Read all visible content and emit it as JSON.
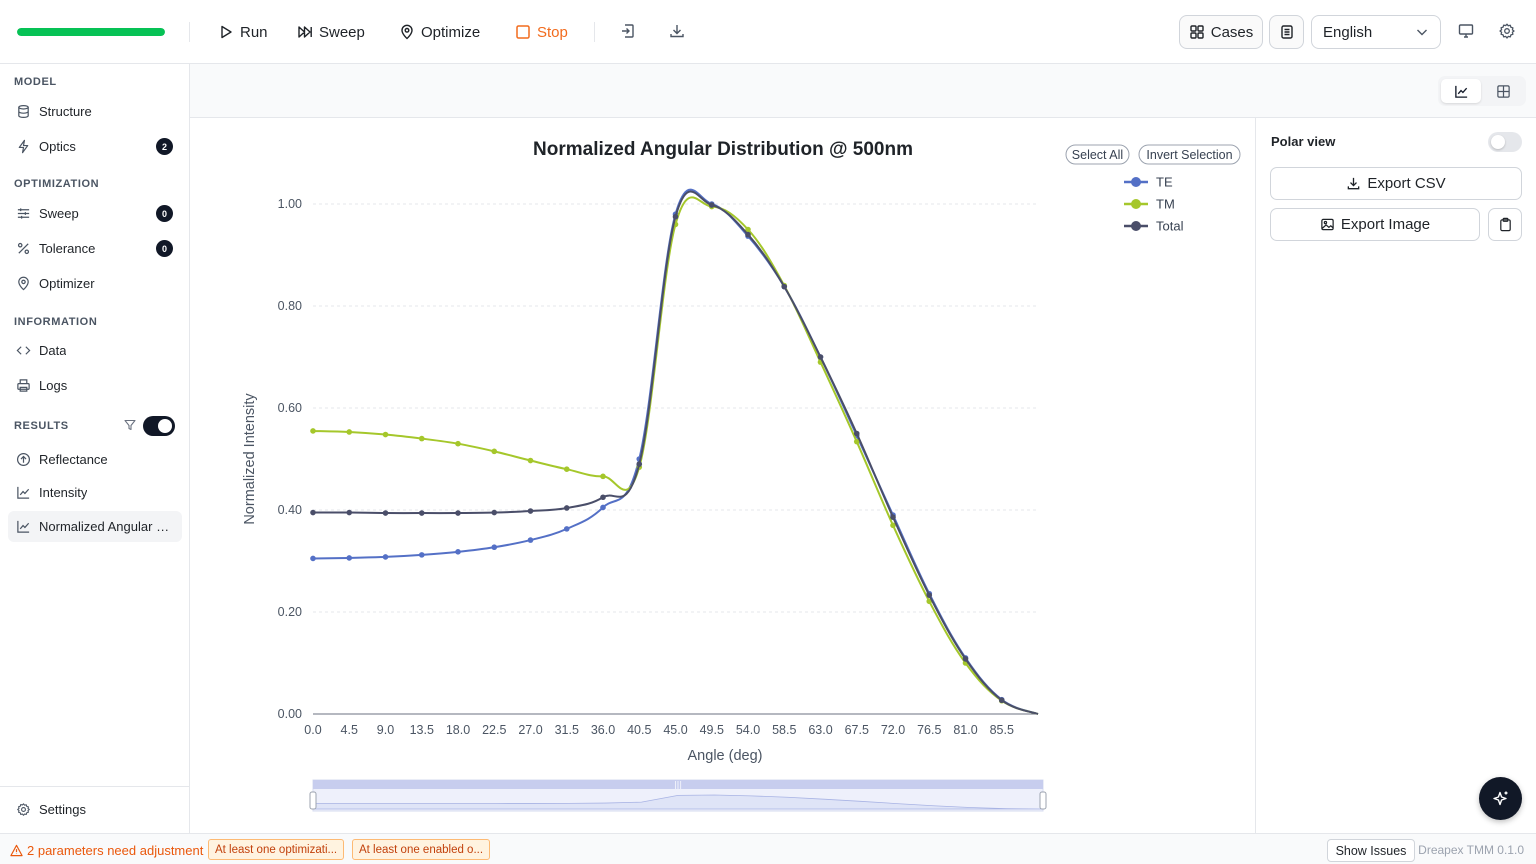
{
  "toolbar": {
    "progress": 1.0,
    "run_label": "Run",
    "sweep_label": "Sweep",
    "optimize_label": "Optimize",
    "stop_label": "Stop",
    "cases_label": "Cases",
    "language": "English",
    "accent": "#06c255",
    "stop_color": "#f26b1d"
  },
  "sidebar": {
    "model_title": "MODEL",
    "structure": "Structure",
    "optics": "Optics",
    "optics_badge": "2",
    "optimization_title": "OPTIMIZATION",
    "sweep": "Sweep",
    "sweep_badge": "0",
    "tolerance": "Tolerance",
    "tolerance_badge": "0",
    "optimizer": "Optimizer",
    "information_title": "INFORMATION",
    "data": "Data",
    "logs": "Logs",
    "results_title": "RESULTS",
    "reflectance": "Reflectance",
    "intensity": "Intensity",
    "normalized": "Normalized Angular Distribution",
    "settings": "Settings"
  },
  "chart_controls": {
    "select_all": "Select All",
    "invert_selection": "Invert Selection"
  },
  "right_panel": {
    "polar_label": "Polar view",
    "export_csv": "Export CSV",
    "export_image": "Export Image"
  },
  "status": {
    "warning": "2 parameters need adjustment",
    "chip1": "At least one optimizati...",
    "chip2": "At least one enabled o...",
    "show_issues": "Show Issues",
    "version": "Dreapex TMM 0.1.0"
  },
  "chart_data": {
    "type": "line",
    "title": "Normalized Angular Distribution @ 500nm",
    "xlabel": "Angle (deg)",
    "ylabel": "Normalized Intensity",
    "xlim": [
      0,
      90
    ],
    "ylim": [
      0,
      1
    ],
    "x_ticks": [
      "0.0",
      "4.5",
      "9.0",
      "13.5",
      "18.0",
      "22.5",
      "27.0",
      "31.5",
      "36.0",
      "40.5",
      "45.0",
      "49.5",
      "54.0",
      "58.5",
      "63.0",
      "67.5",
      "72.0",
      "76.5",
      "81.0",
      "85.5"
    ],
    "y_ticks": [
      "0.00",
      "0.20",
      "0.40",
      "0.60",
      "0.80",
      "1.00"
    ],
    "x": [
      0,
      4.5,
      9,
      13.5,
      18,
      22.5,
      27,
      31.5,
      36,
      40.5,
      45,
      49.5,
      54,
      58.5,
      63,
      67.5,
      72,
      76.5,
      81,
      85.5
    ],
    "series": [
      {
        "name": "TE",
        "color": "#5470c6",
        "values": [
          0.305,
          0.306,
          0.308,
          0.312,
          0.318,
          0.327,
          0.341,
          0.363,
          0.405,
          0.5,
          0.98,
          1.0,
          0.937,
          0.838,
          0.7,
          0.546,
          0.39,
          0.236,
          0.11,
          0.028
        ]
      },
      {
        "name": "TM",
        "color": "#a5c72b",
        "values": [
          0.555,
          0.553,
          0.548,
          0.54,
          0.53,
          0.515,
          0.497,
          0.48,
          0.466,
          0.484,
          0.96,
          0.995,
          0.95,
          0.84,
          0.69,
          0.534,
          0.37,
          0.221,
          0.1,
          0.026
        ]
      },
      {
        "name": "Total",
        "color": "#4a4e69",
        "values": [
          0.395,
          0.395,
          0.394,
          0.394,
          0.394,
          0.395,
          0.398,
          0.404,
          0.425,
          0.49,
          0.975,
          0.998,
          0.94,
          0.838,
          0.7,
          0.55,
          0.386,
          0.233,
          0.108,
          0.027
        ]
      }
    ],
    "legend": "top-right",
    "grid": true
  }
}
